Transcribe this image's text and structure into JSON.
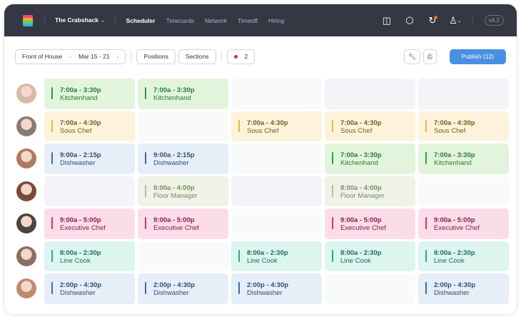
{
  "header": {
    "org": "The Crabshack",
    "nav": [
      {
        "label": "Scheduler",
        "active": true
      },
      {
        "label": "Timecards"
      },
      {
        "label": "Network"
      },
      {
        "label": "Timeoff"
      },
      {
        "label": "Hiring"
      }
    ],
    "version": "v4.2",
    "icons": [
      "book-icon",
      "notification-icon",
      "refresh-icon",
      "user-icon"
    ]
  },
  "toolbar": {
    "location": "Front of House",
    "week": "Mar 15 - 21",
    "positions": "Positions",
    "sections": "Sections",
    "alerts": "2",
    "publish": "Publish (12)"
  },
  "colors": {
    "accent": "#4a90e2",
    "header": "#353842"
  },
  "roles": {
    "Kitchenhand": {
      "bg": "#e2f5dc",
      "bar": "#2f9d3a",
      "fg": "#2a7a2f"
    },
    "Sous Chef": {
      "bg": "#fdf3dc",
      "bar": "#e8b93a",
      "fg": "#7a5a1a"
    },
    "Dishwasher": {
      "bg": "#e6eef7",
      "bar": "#3a6fa8",
      "fg": "#2e4f74"
    },
    "Floor Manager": {
      "bg": "#eef3e6",
      "bar": "#b0bf92",
      "fg": "#7d8a66"
    },
    "Executive Chef": {
      "bg": "#fbdde9",
      "bar": "#d6306f",
      "fg": "#8a1d47"
    },
    "Line Cook": {
      "bg": "#dcf5ef",
      "bar": "#2aa88a",
      "fg": "#1e6d5c"
    }
  },
  "rows": [
    {
      "avatar": "#d9b8a8",
      "cells": [
        {
          "time": "7:00a - 3:30p",
          "role": "Kitchenhand"
        },
        {
          "time": "7:00a - 3:30p",
          "role": "Kitchenhand"
        },
        {
          "state": "empty"
        },
        {
          "state": "unavailable"
        },
        {
          "state": "unavailable"
        }
      ]
    },
    {
      "avatar": "#8a7a70",
      "cells": [
        {
          "time": "7:00a - 4:30p",
          "role": "Sous Chef"
        },
        {
          "state": "empty"
        },
        {
          "time": "7:00a - 4:30p",
          "role": "Sous Chef"
        },
        {
          "time": "7:00a - 4:30p",
          "role": "Sous Chef"
        },
        {
          "time": "7:00a - 4:30p",
          "role": "Sous Chef"
        }
      ]
    },
    {
      "avatar": "#b07a60",
      "cells": [
        {
          "time": "9:00a - 2:15p",
          "role": "Dishwasher"
        },
        {
          "time": "9:00a - 2:15p",
          "role": "Dishwasher"
        },
        {
          "state": "empty"
        },
        {
          "time": "7:00a - 3:30p",
          "role": "Kitchenhand"
        },
        {
          "time": "7:00a - 3:30p",
          "role": "Kitchenhand"
        }
      ]
    },
    {
      "avatar": "#7a4a38",
      "cells": [
        {
          "state": "unavailable"
        },
        {
          "time": "8:00a - 4:00p",
          "role": "Floor Manager"
        },
        {
          "state": "unavailable"
        },
        {
          "time": "8:00a - 4:00p",
          "role": "Floor Manager"
        },
        {
          "state": "empty"
        }
      ]
    },
    {
      "avatar": "#4a4440",
      "cells": [
        {
          "time": "9:00a - 5:00p",
          "role": "Executive Chef"
        },
        {
          "time": "9:00a - 5:00p",
          "role": "Executive Chef"
        },
        {
          "state": "empty"
        },
        {
          "time": "9:00a - 5:00p",
          "role": "Executive Chef"
        },
        {
          "time": "9:00a - 5:00p",
          "role": "Executive Chef"
        }
      ]
    },
    {
      "avatar": "#8a7060",
      "cells": [
        {
          "time": "8:00a - 2:30p",
          "role": "Line Cook"
        },
        {
          "state": "empty"
        },
        {
          "time": "8:00a - 2:30p",
          "role": "Line Cook"
        },
        {
          "time": "8:00a - 2:30p",
          "role": "Line Cook"
        },
        {
          "time": "8:00a - 2:30p",
          "role": "Line Cook"
        }
      ]
    },
    {
      "avatar": "#c08a70",
      "cells": [
        {
          "time": "2:00p - 4:30p",
          "role": "Dishwasher"
        },
        {
          "time": "2:00p - 4:30p",
          "role": "Dishwasher"
        },
        {
          "time": "2:00p - 4:30p",
          "role": "Dishwasher"
        },
        {
          "state": "empty"
        },
        {
          "time": "2:00p - 4:30p",
          "role": "Dishwasher"
        }
      ]
    }
  ]
}
